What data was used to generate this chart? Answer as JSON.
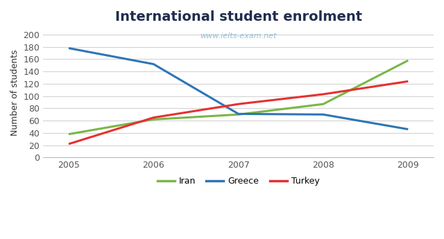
{
  "title": "International student enrolment",
  "watermark": "www.ielts-exam.net",
  "ylabel": "Number of students",
  "years": [
    2005,
    2006,
    2007,
    2008,
    2009
  ],
  "series": {
    "Iran": {
      "values": [
        38,
        62,
        70,
        87,
        158
      ],
      "color": "#7ab648",
      "linewidth": 2.2
    },
    "Greece": {
      "values": [
        178,
        152,
        71,
        70,
        46
      ],
      "color": "#2e75b6",
      "linewidth": 2.2
    },
    "Turkey": {
      "values": [
        22,
        65,
        87,
        103,
        124
      ],
      "color": "#e63030",
      "linewidth": 2.2
    }
  },
  "ylim": [
    0,
    210
  ],
  "yticks": [
    0,
    20,
    40,
    60,
    80,
    100,
    120,
    140,
    160,
    180,
    200
  ],
  "xlim": [
    2004.7,
    2009.3
  ],
  "background_color": "#ffffff",
  "grid_color": "#d3d3d3",
  "title_fontsize": 14,
  "title_color": "#1f2d4e",
  "watermark_color": "#7fb4cc",
  "label_fontsize": 9,
  "tick_fontsize": 9,
  "legend_fontsize": 9
}
